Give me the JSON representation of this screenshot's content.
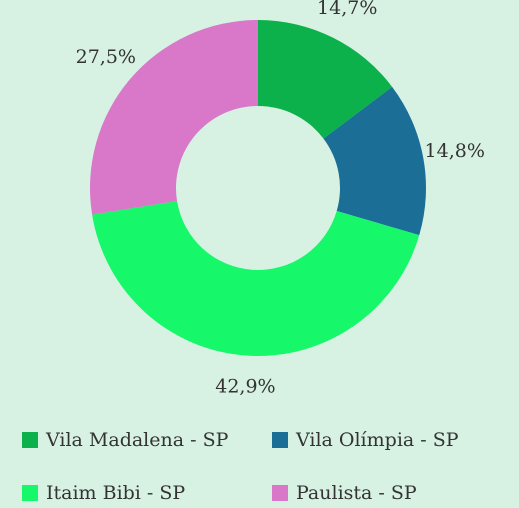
{
  "chart_data": {
    "type": "pie",
    "donut": true,
    "categories": [
      "Vila Madalena - SP",
      "Vila Olímpia - SP",
      "Itaim Bibi - SP",
      "Paulista - SP"
    ],
    "values": [
      14.7,
      14.8,
      42.9,
      27.5
    ],
    "value_labels": [
      "14,7%",
      "14,8%",
      "42,9%",
      "27,5%"
    ],
    "colors": [
      "#0db14b",
      "#1b6f96",
      "#17f76a",
      "#d977c9"
    ]
  }
}
